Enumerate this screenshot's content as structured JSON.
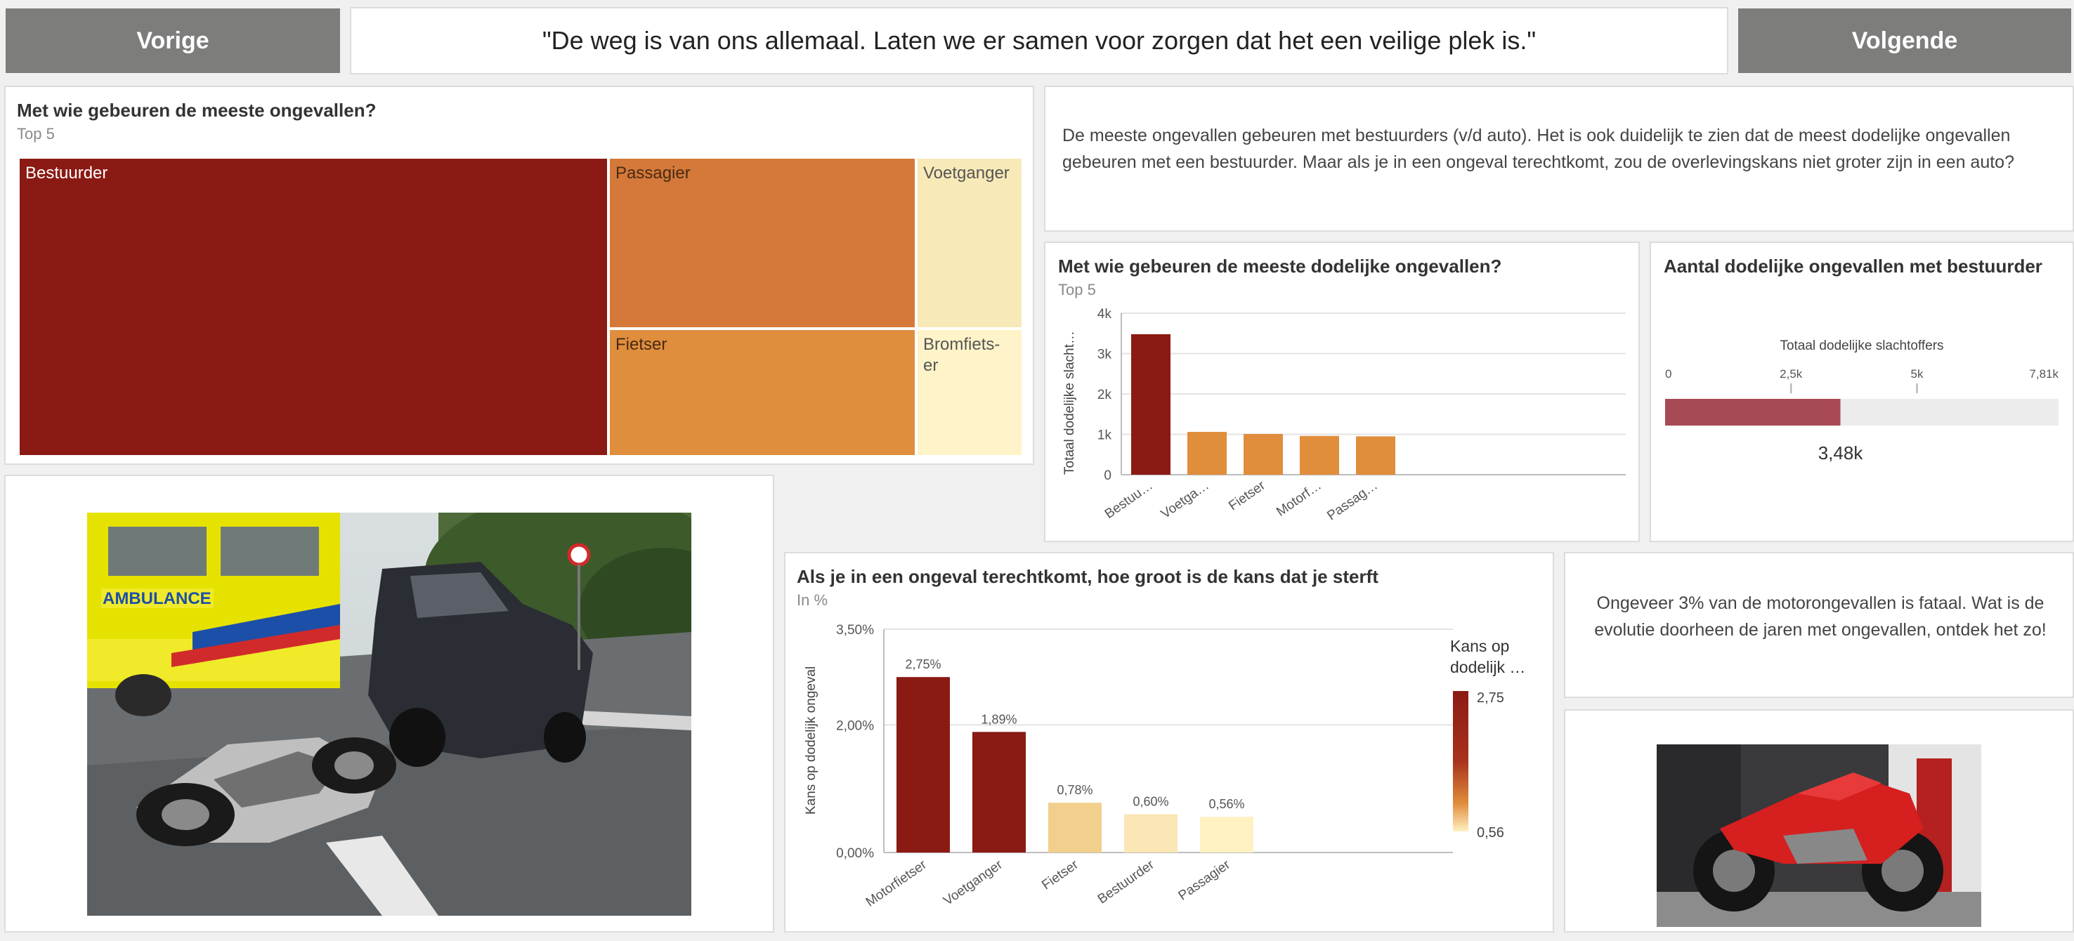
{
  "nav": {
    "prev_label": "Vorige",
    "next_label": "Volgende"
  },
  "quote": "\"De weg is van ons allemaal. Laten we er samen voor zorgen dat het een veilige plek is.\"",
  "treemap": {
    "title": "Met wie gebeuren de meeste ongevallen?",
    "subtitle": "Top 5",
    "tiles": [
      {
        "label": "Bestuurder",
        "color": "#8b1a14"
      },
      {
        "label": "Passagier",
        "color": "#d4793a"
      },
      {
        "label": "Fietser",
        "color": "#df8e3e"
      },
      {
        "label": "Voetganger",
        "color": "#f8e9b8"
      },
      {
        "label": "Bromfiets-\ner",
        "color": "#fff4c9"
      }
    ]
  },
  "info_text_1": "De meeste ongevallen gebeuren met bestuurders (v/d auto). Het is ook duidelijk te zien dat de meest dodelijke ongevallen gebeuren met een bestuurder. Maar als je in een ongeval terechtkomt, zou de overlevingskans niet groter zijn in een auto?",
  "info_text_2": "Ongeveer 3% van de motorongevallen is fataal. Wat is de evolutie doorheen de jaren met ongevallen, ontdek het zo!",
  "gauge": {
    "title": "Aantal dodelijke ongevallen met bestuurder",
    "label": "Totaal dodelijke slachtoffers",
    "ticks": [
      "0",
      "2,5k",
      "5k",
      "7,81k"
    ],
    "value": 3480,
    "max": 7810,
    "value_label": "3,48k",
    "fill_color": "#a84a55",
    "track_color": "#ececec"
  },
  "chart_data": [
    {
      "type": "bar",
      "title": "Met wie gebeuren de meeste dodelijke ongevallen?",
      "subtitle": "Top 5",
      "ylabel": "Totaal dodelijke slacht…",
      "categories": [
        "Bestuu…",
        "Voetga…",
        "Fietser",
        "Motorf…",
        "Passag…"
      ],
      "values": [
        3480,
        1060,
        1010,
        960,
        950
      ],
      "yticks": [
        "0",
        "1k",
        "2k",
        "3k",
        "4k"
      ],
      "ylim": [
        0,
        4000
      ],
      "colors": [
        "#8b1a14",
        "#e08d3c",
        "#e08d3c",
        "#e08d3c",
        "#e08d3c"
      ],
      "grid": true
    },
    {
      "type": "bar",
      "title": "Als je in een ongeval terechtkomt, hoe groot is de kans dat je sterft",
      "subtitle": "In %",
      "ylabel": "Kans op dodelijk ongeval",
      "categories": [
        "Motorfietser",
        "Voetganger",
        "Fietser",
        "Bestuurder",
        "Passagier"
      ],
      "values": [
        2.75,
        1.89,
        0.78,
        0.6,
        0.56
      ],
      "data_labels": [
        "2,75%",
        "1,89%",
        "0,78%",
        "0,60%",
        "0,56%"
      ],
      "yticks": [
        "0,00%",
        "2,00%",
        "3,50%"
      ],
      "ylim": [
        0,
        3.5
      ],
      "colors": [
        "#8b1a14",
        "#8b1a14",
        "#f2cf8c",
        "#fbe7b5",
        "#fff1c2"
      ],
      "grid": true,
      "legend": {
        "title": "Kans op dodelijk …",
        "max_label": "2,75",
        "min_label": "0,56",
        "placement": "right"
      }
    }
  ]
}
